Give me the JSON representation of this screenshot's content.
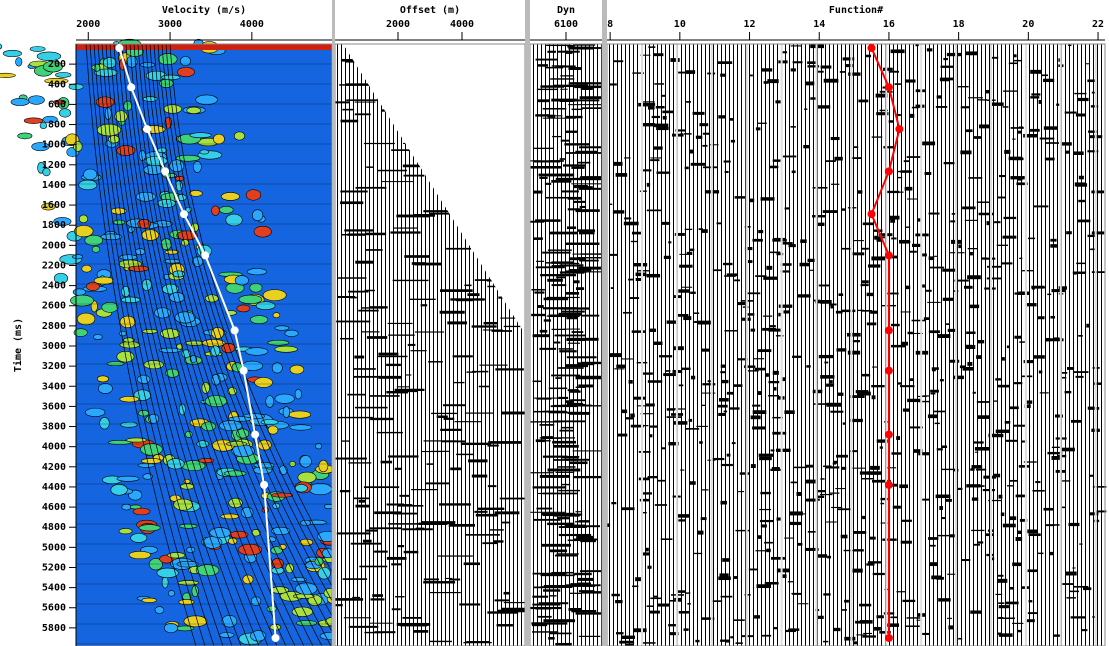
{
  "chart_data": [
    {
      "type": "line",
      "title": "Velocity (m/s)",
      "ylabel": "Time (ms)",
      "xlim": [
        1850,
        4980
      ],
      "xticks": [
        2000,
        3000,
        4000
      ],
      "ylim": [
        0,
        5980
      ],
      "yticks": [
        200,
        400,
        600,
        800,
        1000,
        1200,
        1400,
        1600,
        1800,
        2000,
        2200,
        2400,
        2600,
        2800,
        3000,
        3200,
        3400,
        3600,
        3800,
        4000,
        4200,
        4400,
        4600,
        4800,
        5000,
        5200,
        5400,
        5600,
        5800
      ],
      "series": [
        {
          "color": "#ffffff",
          "x": [
            2380,
            2525,
            2720,
            2940,
            3170,
            3430,
            3790,
            3900,
            4040,
            4150,
            4290
          ],
          "values": [
            40,
            430,
            845,
            1265,
            1690,
            2100,
            2845,
            3245,
            3880,
            4380,
            5900
          ]
        }
      ]
    },
    {
      "type": "gather",
      "title": "Offset (m)",
      "xlim": [
        30,
        5970
      ],
      "xticks": [
        2000,
        4000
      ]
    },
    {
      "type": "gather",
      "title": "Dyn",
      "xticks": [
        6100
      ]
    },
    {
      "type": "line",
      "title": "Function#",
      "xlim": [
        7.91,
        22.2
      ],
      "xticks": [
        8,
        10,
        12,
        14,
        16,
        18,
        20,
        22
      ],
      "series": [
        {
          "color": "#ff0000",
          "x": [
            15.5,
            16.0,
            16.3,
            16.0,
            15.5,
            16.0,
            16.0,
            16.0,
            16.0,
            16.0,
            16.0
          ],
          "values": [
            40,
            430,
            845,
            1265,
            1690,
            2100,
            2845,
            3245,
            3880,
            4380,
            5900
          ]
        }
      ]
    }
  ]
}
